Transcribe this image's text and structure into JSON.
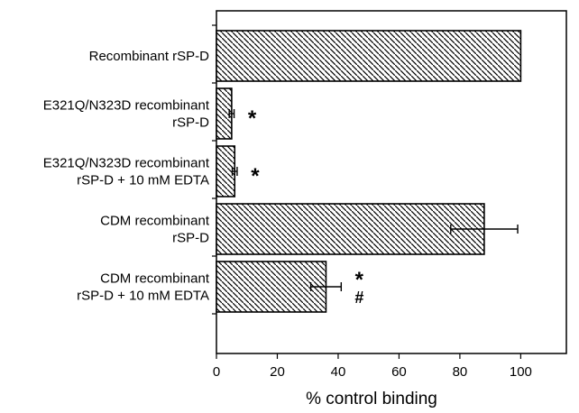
{
  "chart_data": {
    "type": "bar",
    "orientation": "horizontal",
    "title": "",
    "xlabel": "% control binding",
    "ylabel": "",
    "xlim": [
      0,
      115
    ],
    "xticks": [
      0,
      20,
      40,
      60,
      80,
      100
    ],
    "grid": false,
    "legend": "none",
    "bar_fill": "diagonal-hatch",
    "colors": {
      "bar_edge": "#000000",
      "hatch": "#000000",
      "background": "#ffffff"
    },
    "categories": [
      {
        "lines": [
          "Recombinant rSP-D"
        ]
      },
      {
        "lines": [
          "E321Q/N323D recombinant",
          "rSP-D"
        ]
      },
      {
        "lines": [
          "E321Q/N323D recombinant",
          "rSP-D + 10 mM EDTA"
        ]
      },
      {
        "lines": [
          "CDM recombinant",
          "rSP-D"
        ]
      },
      {
        "lines": [
          "CDM recombinant",
          "rSP-D + 10 mM EDTA"
        ]
      }
    ],
    "values": [
      100,
      5,
      6,
      88,
      36
    ],
    "errors": [
      0,
      0.8,
      0.8,
      11,
      5
    ],
    "annotations": [
      {
        "category_index": 1,
        "marks": [
          "*"
        ]
      },
      {
        "category_index": 2,
        "marks": [
          "*"
        ]
      },
      {
        "category_index": 4,
        "marks": [
          "*",
          "#"
        ]
      }
    ]
  }
}
